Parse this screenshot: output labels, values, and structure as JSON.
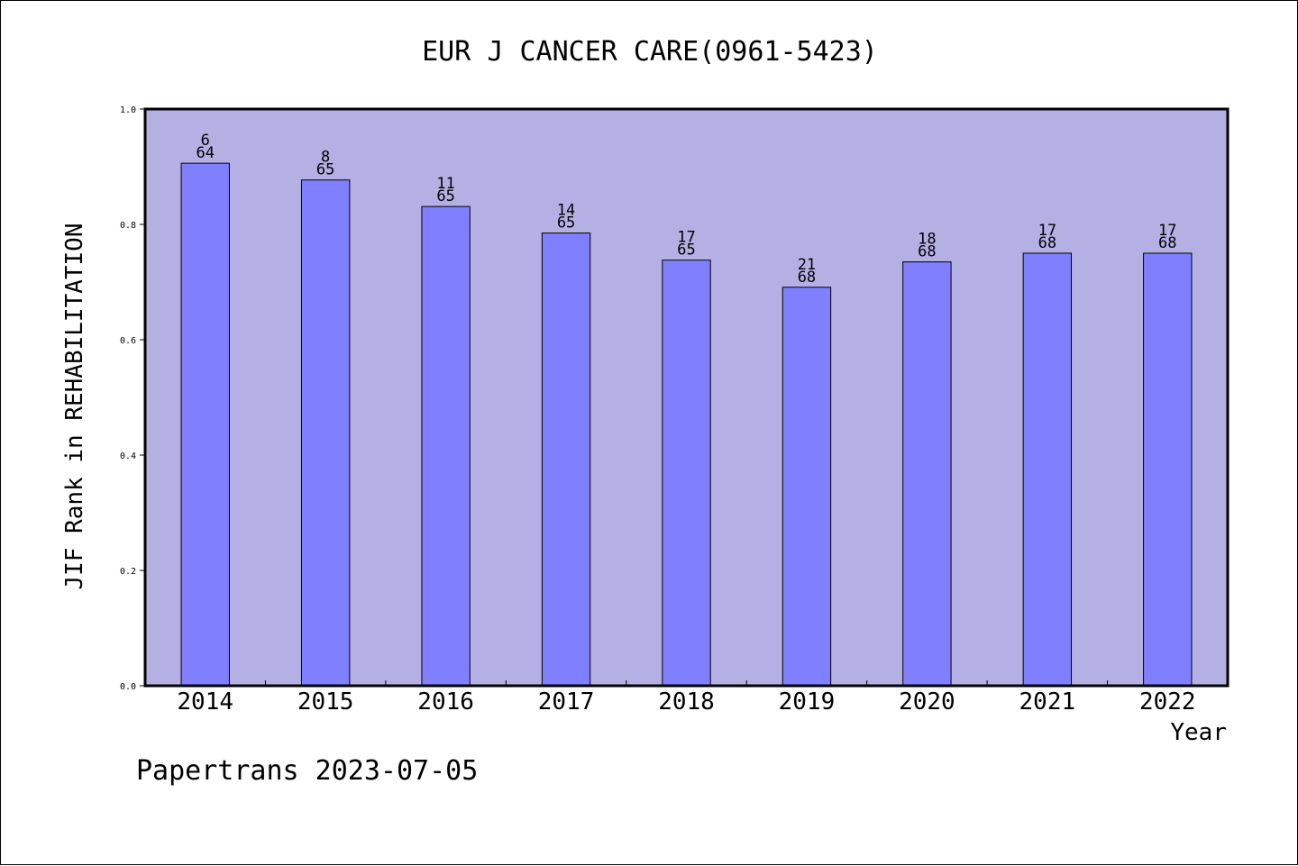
{
  "chart_data": {
    "type": "bar",
    "title": "EUR J CANCER CARE(0961-5423)",
    "xlabel": "Year",
    "ylabel": "JIF Rank in REHABILITATION",
    "ylim": [
      0,
      1.0
    ],
    "yticks": [
      "0.0",
      "0.2",
      "0.4",
      "0.6",
      "0.8",
      "1.0"
    ],
    "categories": [
      "2014",
      "2015",
      "2016",
      "2017",
      "2018",
      "2019",
      "2020",
      "2021",
      "2022"
    ],
    "values": [
      0.906,
      0.877,
      0.831,
      0.785,
      0.738,
      0.691,
      0.735,
      0.75,
      0.75
    ],
    "ranks": [
      "6",
      "8",
      "11",
      "14",
      "17",
      "21",
      "18",
      "17",
      "17"
    ],
    "totals": [
      "64",
      "65",
      "65",
      "65",
      "65",
      "68",
      "68",
      "68",
      "68"
    ],
    "grid": false,
    "plot_bg": "#b5b0e3",
    "bar_color": "#8080ff"
  },
  "footer": {
    "credit": "Papertrans 2023-07-05"
  }
}
